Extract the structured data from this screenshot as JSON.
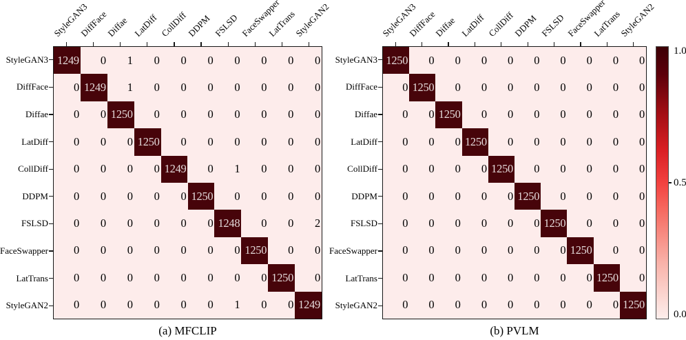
{
  "figure": {
    "background": "#ffffff",
    "description": "Confusion matrices of MFCLIP and PVLM over ten face forgery classes"
  },
  "chart_data": [
    {
      "type": "heatmap",
      "title": "(a) MFCLIP",
      "x_labels": [
        "StyleGAN3",
        "DiffFace",
        "Diffae",
        "LatDiff",
        "CollDiff",
        "DDPM",
        "FSLSD",
        "FaceSwapper",
        "LatTrans",
        "StyleGAN2"
      ],
      "y_labels": [
        "StyleGAN3",
        "DiffFace",
        "Diffae",
        "LatDiff",
        "CollDiff",
        "DDPM",
        "FSLSD",
        "FaceSwapper",
        "LatTrans",
        "StyleGAN2"
      ],
      "values": [
        [
          1249,
          0,
          1,
          0,
          0,
          0,
          0,
          0,
          0,
          0
        ],
        [
          0,
          1249,
          1,
          0,
          0,
          0,
          0,
          0,
          0,
          0
        ],
        [
          0,
          0,
          1250,
          0,
          0,
          0,
          0,
          0,
          0,
          0
        ],
        [
          0,
          0,
          0,
          1250,
          0,
          0,
          0,
          0,
          0,
          0
        ],
        [
          0,
          0,
          0,
          0,
          1249,
          0,
          1,
          0,
          0,
          0
        ],
        [
          0,
          0,
          0,
          0,
          0,
          1250,
          0,
          0,
          0,
          0
        ],
        [
          0,
          0,
          0,
          0,
          0,
          0,
          1248,
          0,
          0,
          2
        ],
        [
          0,
          0,
          0,
          0,
          0,
          0,
          0,
          1250,
          0,
          0
        ],
        [
          0,
          0,
          0,
          0,
          0,
          0,
          0,
          0,
          1250,
          0
        ],
        [
          0,
          0,
          0,
          0,
          0,
          0,
          1,
          0,
          0,
          1249
        ]
      ],
      "colormap": "Reds",
      "normalized_range": [
        0.0,
        1.0
      ],
      "grid": false,
      "legend_position": "shared-right-colorbar"
    },
    {
      "type": "heatmap",
      "title": "(b) PVLM",
      "x_labels": [
        "StyleGAN3",
        "DiffFace",
        "Diffae",
        "LatDiff",
        "CollDiff",
        "DDPM",
        "FSLSD",
        "FaceSwapper",
        "LatTrans",
        "StyleGAN2"
      ],
      "y_labels": [
        "StyleGAN3",
        "DiffFace",
        "Diffae",
        "LatDiff",
        "CollDiff",
        "DDPM",
        "FSLSD",
        "FaceSwapper",
        "LatTrans",
        "StyleGAN2"
      ],
      "values": [
        [
          1250,
          0,
          0,
          0,
          0,
          0,
          0,
          0,
          0,
          0
        ],
        [
          0,
          1250,
          0,
          0,
          0,
          0,
          0,
          0,
          0,
          0
        ],
        [
          0,
          0,
          1250,
          0,
          0,
          0,
          0,
          0,
          0,
          0
        ],
        [
          0,
          0,
          0,
          1250,
          0,
          0,
          0,
          0,
          0,
          0
        ],
        [
          0,
          0,
          0,
          0,
          1250,
          0,
          0,
          0,
          0,
          0
        ],
        [
          0,
          0,
          0,
          0,
          0,
          1250,
          0,
          0,
          0,
          0
        ],
        [
          0,
          0,
          0,
          0,
          0,
          0,
          1250,
          0,
          0,
          0
        ],
        [
          0,
          0,
          0,
          0,
          0,
          0,
          0,
          1250,
          0,
          0
        ],
        [
          0,
          0,
          0,
          0,
          0,
          0,
          0,
          0,
          1250,
          0
        ],
        [
          0,
          0,
          0,
          0,
          0,
          0,
          0,
          0,
          0,
          1250
        ]
      ],
      "colormap": "Reds",
      "normalized_range": [
        0.0,
        1.0
      ],
      "grid": false,
      "legend_position": "shared-right-colorbar"
    }
  ],
  "colorbar": {
    "tick_labels": [
      "1.0",
      "0.5",
      "0.0"
    ],
    "min": "0.0",
    "max": "1.0",
    "gradient_colors_bottom_to_top": [
      "#fdeeec",
      "#f9b4ab",
      "#f66a60",
      "#f2413f",
      "#d91f24",
      "#a50f15",
      "#5c000a",
      "#3c0006"
    ]
  },
  "colors": {
    "diagonal_cell": "#47040a",
    "off_diagonal_cell": "#fdeceb",
    "diagonal_text": "#e3d9d9",
    "off_diagonal_text": "#000000",
    "matrix_border": "#161616",
    "tick_mark": "#161616",
    "colorbar_border": "#4a4a4a"
  }
}
